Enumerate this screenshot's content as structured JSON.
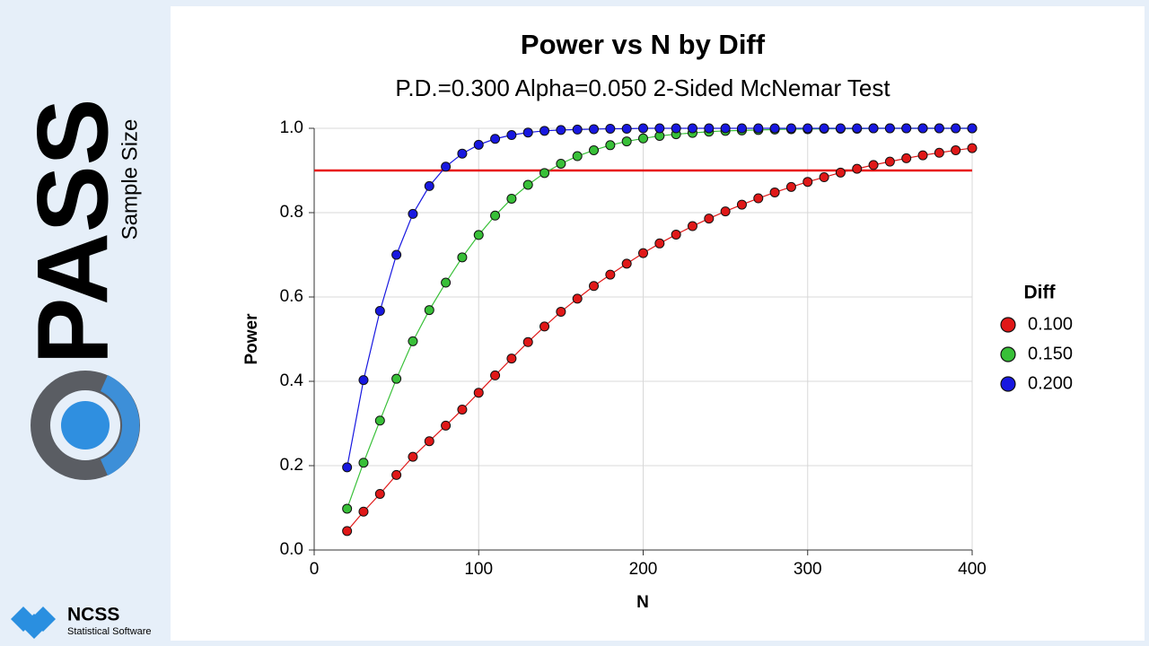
{
  "brand": {
    "product": "PASS",
    "tagline": "Sample Size",
    "company": "NCSS",
    "company_tagline": "Statistical Software"
  },
  "chart_data": {
    "type": "line",
    "title": "Power vs N by Diff",
    "subtitle": "P.D.=0.300 Alpha=0.050 2-Sided McNemar Test",
    "x_label": "N",
    "y_label": "Power",
    "legend_title": "Diff",
    "legend": "right",
    "grid": true,
    "x": [
      20,
      30,
      40,
      50,
      60,
      70,
      80,
      90,
      100,
      110,
      120,
      130,
      140,
      150,
      160,
      170,
      180,
      190,
      200,
      210,
      220,
      230,
      240,
      250,
      260,
      270,
      280,
      290,
      300,
      310,
      320,
      330,
      340,
      350,
      360,
      370,
      380,
      390,
      400
    ],
    "series": [
      {
        "name": "0.100",
        "color": "#e01818",
        "values": [
          0.045,
          0.091,
          0.133,
          0.178,
          0.221,
          0.258,
          0.295,
          0.333,
          0.373,
          0.414,
          0.454,
          0.493,
          0.53,
          0.565,
          0.596,
          0.626,
          0.653,
          0.679,
          0.704,
          0.727,
          0.748,
          0.768,
          0.786,
          0.803,
          0.819,
          0.834,
          0.848,
          0.861,
          0.873,
          0.884,
          0.895,
          0.904,
          0.913,
          0.921,
          0.929,
          0.936,
          0.942,
          0.948,
          0.953
        ]
      },
      {
        "name": "0.150",
        "color": "#38c038",
        "values": [
          0.098,
          0.207,
          0.307,
          0.406,
          0.495,
          0.569,
          0.634,
          0.694,
          0.747,
          0.793,
          0.833,
          0.866,
          0.894,
          0.916,
          0.934,
          0.948,
          0.96,
          0.969,
          0.976,
          0.982,
          0.986,
          0.989,
          0.992,
          0.994,
          0.995,
          0.996,
          0.997,
          0.998,
          0.998,
          0.999,
          0.999,
          0.999,
          1.0,
          1.0,
          1.0,
          1.0,
          1.0,
          1.0,
          1.0
        ]
      },
      {
        "name": "0.200",
        "color": "#1818e0",
        "values": [
          0.196,
          0.403,
          0.567,
          0.7,
          0.797,
          0.863,
          0.909,
          0.94,
          0.961,
          0.975,
          0.984,
          0.99,
          0.994,
          0.996,
          0.997,
          0.998,
          0.999,
          0.999,
          1.0,
          1.0,
          1.0,
          1.0,
          1.0,
          1.0,
          1.0,
          1.0,
          1.0,
          1.0,
          1.0,
          1.0,
          1.0,
          1.0,
          1.0,
          1.0,
          1.0,
          1.0,
          1.0,
          1.0,
          1.0
        ]
      }
    ],
    "reference_line": {
      "value": 0.9,
      "color": "#e81010"
    },
    "xlim": [
      0,
      400
    ],
    "xticks": [
      0,
      100,
      200,
      300,
      400
    ],
    "ylim": [
      0,
      1
    ],
    "yticks": [
      {
        "value": 0,
        "label": "0.0"
      },
      {
        "value": 0.2,
        "label": "0.2"
      },
      {
        "value": 0.4,
        "label": "0.4"
      },
      {
        "value": 0.6,
        "label": "0.6"
      },
      {
        "value": 0.8,
        "label": "0.8"
      },
      {
        "value": 1,
        "label": "1.0"
      }
    ]
  }
}
